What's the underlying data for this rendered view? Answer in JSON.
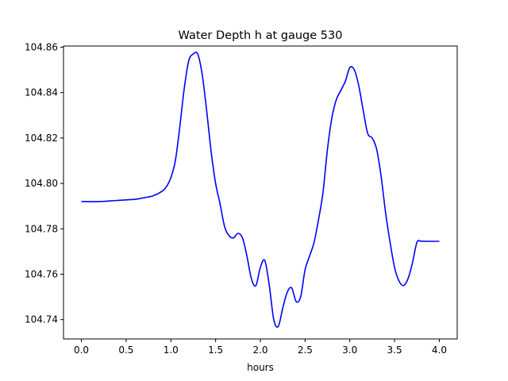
{
  "chart_data": {
    "type": "line",
    "title": "Water Depth h at gauge 530",
    "xlabel": "hours",
    "ylabel": "",
    "xlim": [
      -0.2,
      4.2
    ],
    "ylim": [
      104.7315,
      104.8605
    ],
    "xticks": [
      0.0,
      0.5,
      1.0,
      1.5,
      2.0,
      2.5,
      3.0,
      3.5,
      4.0
    ],
    "xtick_labels": [
      "0.0",
      "0.5",
      "1.0",
      "1.5",
      "2.0",
      "2.5",
      "3.0",
      "3.5",
      "4.0"
    ],
    "yticks": [
      104.74,
      104.76,
      104.78,
      104.8,
      104.82,
      104.84,
      104.86
    ],
    "ytick_labels": [
      "104.74",
      "104.76",
      "104.78",
      "104.80",
      "104.82",
      "104.84",
      "104.86"
    ],
    "grid": false,
    "series": [
      {
        "color": "#0000ff",
        "x": [
          0.0,
          0.2,
          0.4,
          0.6,
          0.7,
          0.8,
          0.9,
          0.95,
          1.0,
          1.05,
          1.1,
          1.15,
          1.2,
          1.25,
          1.3,
          1.35,
          1.4,
          1.45,
          1.5,
          1.55,
          1.6,
          1.65,
          1.7,
          1.75,
          1.8,
          1.85,
          1.9,
          1.95,
          2.0,
          2.05,
          2.1,
          2.15,
          2.2,
          2.25,
          2.3,
          2.35,
          2.4,
          2.45,
          2.5,
          2.55,
          2.6,
          2.65,
          2.7,
          2.75,
          2.8,
          2.85,
          2.9,
          2.95,
          3.0,
          3.05,
          3.1,
          3.15,
          3.2,
          3.25,
          3.3,
          3.35,
          3.4,
          3.45,
          3.5,
          3.55,
          3.6,
          3.65,
          3.7,
          3.75,
          3.8,
          3.85,
          3.9,
          3.95,
          4.0
        ],
        "y": [
          104.792,
          104.792,
          104.7925,
          104.793,
          104.7937,
          104.7945,
          104.7965,
          104.7985,
          104.8025,
          104.81,
          104.825,
          104.842,
          104.854,
          104.857,
          104.857,
          104.848,
          104.832,
          104.814,
          104.8,
          104.791,
          104.781,
          104.777,
          104.776,
          104.778,
          104.776,
          104.768,
          104.758,
          104.755,
          104.763,
          104.766,
          104.755,
          104.74,
          104.737,
          104.745,
          104.752,
          104.754,
          104.748,
          104.75,
          104.762,
          104.768,
          104.774,
          104.784,
          104.796,
          104.815,
          104.829,
          104.837,
          104.841,
          104.845,
          104.851,
          104.85,
          104.843,
          104.832,
          104.822,
          104.82,
          104.815,
          104.803,
          104.787,
          104.774,
          104.763,
          104.757,
          104.755,
          104.758,
          104.765,
          104.774,
          104.7745,
          104.7745,
          104.7745,
          104.7745,
          104.7745
        ]
      }
    ]
  }
}
